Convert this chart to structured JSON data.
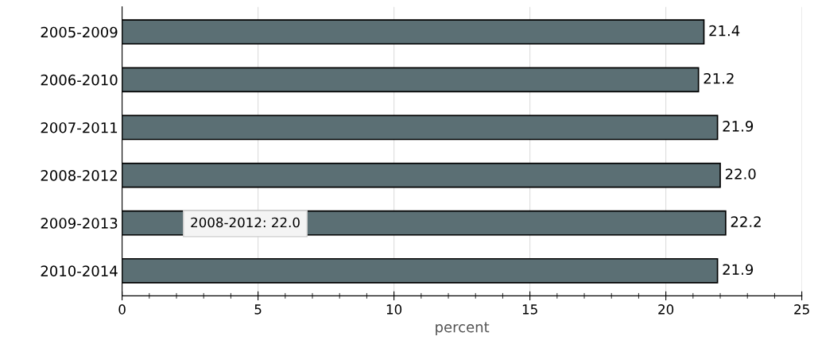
{
  "chart_data": {
    "type": "bar",
    "orientation": "horizontal",
    "categories": [
      "2005-2009",
      "2006-2010",
      "2007-2011",
      "2008-2012",
      "2009-2013",
      "2010-2014"
    ],
    "values": [
      21.4,
      21.2,
      21.9,
      22.0,
      22.2,
      21.9
    ],
    "value_labels": [
      "21.4",
      "21.2",
      "21.9",
      "22.0",
      "22.2",
      "21.9"
    ],
    "color": "#5b6f74",
    "xlim": [
      0,
      25
    ],
    "xticks": [
      0,
      5,
      10,
      15,
      20,
      25
    ],
    "xlabel": "percent",
    "grid": "x",
    "legend": false,
    "annotations": [
      "2008-2012: 22.0"
    ]
  }
}
